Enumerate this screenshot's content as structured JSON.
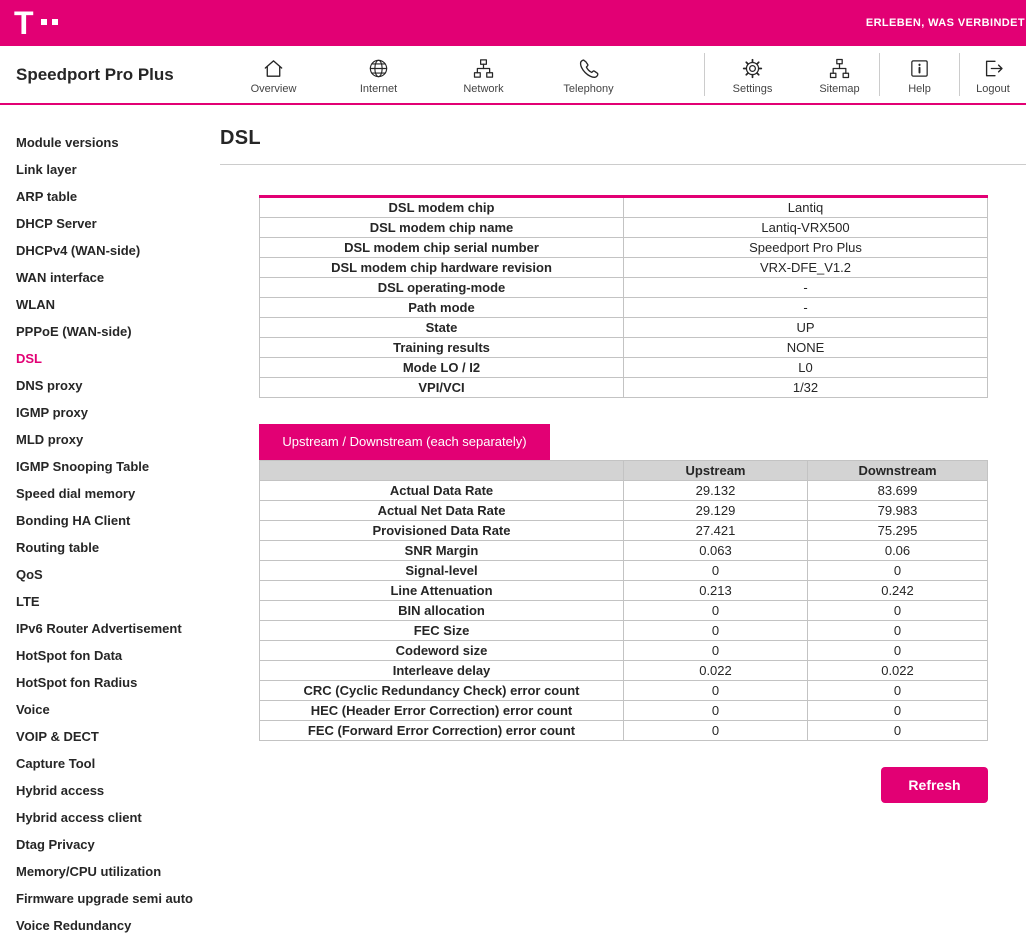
{
  "topbar": {
    "logo_letter": "T",
    "slogan": "ERLEBEN, WAS VERBINDET",
    "brand_color": "#e20074"
  },
  "header": {
    "title": "Speedport Pro Plus",
    "nav": [
      {
        "label": "Overview",
        "icon": "home-icon"
      },
      {
        "label": "Internet",
        "icon": "globe-icon"
      },
      {
        "label": "Network",
        "icon": "network-icon"
      },
      {
        "label": "Telephony",
        "icon": "phone-icon"
      },
      {
        "label": "Settings",
        "icon": "gear-icon"
      },
      {
        "label": "Sitemap",
        "icon": "sitemap-icon"
      },
      {
        "label": "Help",
        "icon": "info-icon"
      },
      {
        "label": "Logout",
        "icon": "logout-icon"
      }
    ]
  },
  "sidebar": {
    "active_item": "DSL",
    "items": [
      "Module versions",
      "Link layer",
      "ARP table",
      "DHCP Server",
      "DHCPv4 (WAN-side)",
      "WAN interface",
      "WLAN",
      "PPPoE (WAN-side)",
      "DSL",
      "DNS proxy",
      "IGMP proxy",
      "MLD proxy",
      "IGMP Snooping Table",
      "Speed dial memory",
      "Bonding HA Client",
      "Routing table",
      "QoS",
      "LTE",
      "IPv6 Router Advertisement",
      "HotSpot fon Data",
      "HotSpot fon Radius",
      "Voice",
      "VOIP & DECT",
      "Capture Tool",
      "Hybrid access",
      "Hybrid access client",
      "Dtag Privacy",
      "Memory/CPU utilization",
      "Firmware upgrade semi auto",
      "Voice Redundancy"
    ]
  },
  "main": {
    "title": "DSL",
    "info_table": {
      "rows": [
        {
          "label": "DSL modem chip",
          "value": "Lantiq"
        },
        {
          "label": "DSL modem chip name",
          "value": "Lantiq-VRX500"
        },
        {
          "label": "DSL modem chip serial number",
          "value": "Speedport Pro Plus"
        },
        {
          "label": "DSL modem chip hardware revision",
          "value": "VRX-DFE_V1.2"
        },
        {
          "label": "DSL operating-mode",
          "value": "-"
        },
        {
          "label": "Path mode",
          "value": "-"
        },
        {
          "label": "State",
          "value": "UP"
        },
        {
          "label": "Training results",
          "value": "NONE"
        },
        {
          "label": "Mode LO / I2",
          "value": "L0"
        },
        {
          "label": "VPI/VCI",
          "value": "1/32"
        }
      ]
    },
    "updown_table": {
      "tab_label": "Upstream / Downstream (each separately)",
      "columns": [
        "Upstream",
        "Downstream"
      ],
      "rows": [
        {
          "label": "Actual Data Rate",
          "upstream": "29.132",
          "downstream": "83.699"
        },
        {
          "label": "Actual Net Data Rate",
          "upstream": "29.129",
          "downstream": "79.983"
        },
        {
          "label": "Provisioned Data Rate",
          "upstream": "27.421",
          "downstream": "75.295"
        },
        {
          "label": "SNR Margin",
          "upstream": "0.063",
          "downstream": "0.06"
        },
        {
          "label": "Signal-level",
          "upstream": "0",
          "downstream": "0"
        },
        {
          "label": "Line Attenuation",
          "upstream": "0.213",
          "downstream": "0.242"
        },
        {
          "label": "BIN allocation",
          "upstream": "0",
          "downstream": "0"
        },
        {
          "label": "FEC Size",
          "upstream": "0",
          "downstream": "0"
        },
        {
          "label": "Codeword size",
          "upstream": "0",
          "downstream": "0"
        },
        {
          "label": "Interleave delay",
          "upstream": "0.022",
          "downstream": "0.022"
        },
        {
          "label": "CRC (Cyclic Redundancy Check) error count",
          "upstream": "0",
          "downstream": "0"
        },
        {
          "label": "HEC (Header Error Correction) error count",
          "upstream": "0",
          "downstream": "0"
        },
        {
          "label": "FEC (Forward Error Correction) error count",
          "upstream": "0",
          "downstream": "0"
        }
      ]
    },
    "refresh_label": "Refresh"
  }
}
